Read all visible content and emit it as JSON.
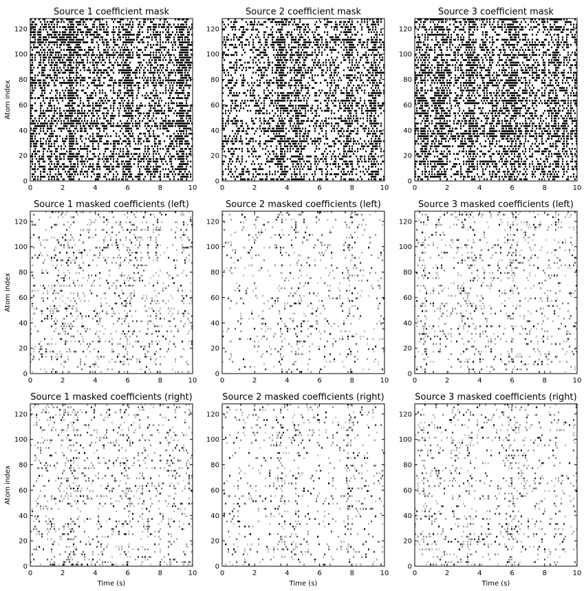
{
  "chart_data": [
    {
      "type": "heatmap",
      "title": "Source 1 coefficient mask",
      "xlabel": "",
      "ylabel": "Atom index",
      "xlim": [
        0,
        10
      ],
      "ylim": [
        0,
        128
      ],
      "xticks": [
        0,
        2,
        4,
        6,
        8,
        10
      ],
      "yticks": [
        0,
        20,
        40,
        60,
        80,
        100,
        120
      ],
      "style": "binary-mask",
      "density": 0.42,
      "dense_x_bands": [
        2.5,
        6.0,
        9.4
      ],
      "colormap": [
        "#ffffff",
        "#000000"
      ],
      "grid": false
    },
    {
      "type": "heatmap",
      "title": "Source 2 coefficient mask",
      "xlabel": "",
      "ylabel": "",
      "xlim": [
        0,
        10
      ],
      "ylim": [
        0,
        128
      ],
      "xticks": [
        0,
        2,
        4,
        6,
        8,
        10
      ],
      "yticks": [
        0,
        20,
        40,
        60,
        80,
        100,
        120
      ],
      "style": "binary-mask",
      "density": 0.34,
      "dense_x_bands": [
        3.6,
        4.6,
        7.8,
        9.4
      ],
      "colormap": [
        "#ffffff",
        "#000000"
      ],
      "grid": false
    },
    {
      "type": "heatmap",
      "title": "Source 3 coefficient mask",
      "xlabel": "",
      "ylabel": "",
      "xlim": [
        0,
        10
      ],
      "ylim": [
        0,
        128
      ],
      "xticks": [
        0,
        2,
        4,
        6,
        8,
        10
      ],
      "yticks": [
        0,
        20,
        40,
        60,
        80,
        100,
        120
      ],
      "style": "binary-mask",
      "density": 0.38,
      "dense_x_bands": [
        0.6,
        1.6,
        3.4,
        6.0,
        8.6
      ],
      "colormap": [
        "#ffffff",
        "#000000"
      ],
      "grid": false
    },
    {
      "type": "heatmap",
      "title": "Source 1 masked coefficients (left)",
      "xlabel": "",
      "ylabel": "Atom index",
      "xlim": [
        0,
        10
      ],
      "ylim": [
        0,
        128
      ],
      "xticks": [
        0,
        2,
        4,
        6,
        8,
        10
      ],
      "yticks": [
        0,
        20,
        40,
        60,
        80,
        100,
        120
      ],
      "style": "sparse-magnitude",
      "density": 0.13,
      "dense_x_bands": [
        2.5,
        6.0
      ],
      "colormap": [
        "#ffffff",
        "#000000"
      ],
      "grid": false
    },
    {
      "type": "heatmap",
      "title": "Source 2 masked coefficients (left)",
      "xlabel": "",
      "ylabel": "",
      "xlim": [
        0,
        10
      ],
      "ylim": [
        0,
        128
      ],
      "xticks": [
        0,
        2,
        4,
        6,
        8,
        10
      ],
      "yticks": [
        0,
        20,
        40,
        60,
        80,
        100,
        120
      ],
      "style": "sparse-magnitude",
      "density": 0.08,
      "dense_x_bands": [
        3.6,
        4.6,
        7.8
      ],
      "colormap": [
        "#ffffff",
        "#000000"
      ],
      "grid": false
    },
    {
      "type": "heatmap",
      "title": "Source 3 masked coefficients (left)",
      "xlabel": "",
      "ylabel": "",
      "xlim": [
        0,
        10
      ],
      "ylim": [
        0,
        128
      ],
      "xticks": [
        0,
        2,
        4,
        6,
        8,
        10
      ],
      "yticks": [
        0,
        20,
        40,
        60,
        80,
        100,
        120
      ],
      "style": "sparse-magnitude",
      "density": 0.11,
      "dense_x_bands": [
        0.6,
        3.4,
        6.0
      ],
      "colormap": [
        "#ffffff",
        "#000000"
      ],
      "grid": false
    },
    {
      "type": "heatmap",
      "title": "Source 1 masked coefficients (right)",
      "xlabel": "Time (s)",
      "ylabel": "Atom index",
      "xlim": [
        0,
        10
      ],
      "ylim": [
        0,
        128
      ],
      "xticks": [
        0,
        2,
        4,
        6,
        8,
        10
      ],
      "yticks": [
        0,
        20,
        40,
        60,
        80,
        100,
        120
      ],
      "style": "sparse-magnitude",
      "density": 0.13,
      "dense_x_bands": [
        2.5,
        6.0
      ],
      "colormap": [
        "#ffffff",
        "#000000"
      ],
      "grid": false
    },
    {
      "type": "heatmap",
      "title": "Source 2 masked coefficients (right)",
      "xlabel": "Time (s)",
      "ylabel": "",
      "xlim": [
        0,
        10
      ],
      "ylim": [
        0,
        128
      ],
      "xticks": [
        0,
        2,
        4,
        6,
        8,
        10
      ],
      "yticks": [
        0,
        20,
        40,
        60,
        80,
        100,
        120
      ],
      "style": "sparse-magnitude",
      "density": 0.08,
      "dense_x_bands": [
        3.6,
        4.6,
        7.8
      ],
      "colormap": [
        "#ffffff",
        "#000000"
      ],
      "grid": false
    },
    {
      "type": "heatmap",
      "title": "Source 3 masked coefficients (right)",
      "xlabel": "Time (s)",
      "ylabel": "",
      "xlim": [
        0,
        10
      ],
      "ylim": [
        0,
        128
      ],
      "xticks": [
        0,
        2,
        4,
        6,
        8,
        10
      ],
      "yticks": [
        0,
        20,
        40,
        60,
        80,
        100,
        120
      ],
      "style": "sparse-magnitude",
      "density": 0.11,
      "dense_x_bands": [
        0.6,
        3.4,
        6.0
      ],
      "colormap": [
        "#ffffff",
        "#000000"
      ],
      "grid": false
    }
  ]
}
